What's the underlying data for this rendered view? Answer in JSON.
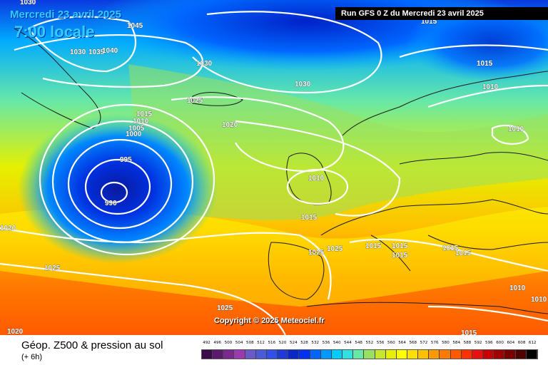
{
  "header": {
    "date": "Mercredi 23 avril 2025",
    "time": "7:00 locale",
    "run": "Run GFS 0 Z du Mercredi 23 avril 2025"
  },
  "copyright": "Copyright © 2025 Meteociel.fr",
  "footer": {
    "title": "Géop. Z500 & pression au sol",
    "subtitle": "(+ 6h)"
  },
  "legend": {
    "values": [
      "492",
      "496",
      "500",
      "504",
      "508",
      "512",
      "516",
      "520",
      "524",
      "528",
      "532",
      "536",
      "540",
      "544",
      "548",
      "552",
      "556",
      "560",
      "564",
      "568",
      "572",
      "576",
      "580",
      "584",
      "588",
      "592",
      "596",
      "600",
      "604",
      "608",
      "612"
    ],
    "colors": [
      "#3a0a4a",
      "#5a1a6e",
      "#7a2a8e",
      "#9a3aae",
      "#6a5ac8",
      "#4a5ad8",
      "#3050e8",
      "#1e3ad8",
      "#0a28c8",
      "#0030f0",
      "#0066ff",
      "#0099ff",
      "#00ccff",
      "#33e0e0",
      "#66e8a8",
      "#99e060",
      "#c8e630",
      "#e6f000",
      "#ffff00",
      "#ffe000",
      "#ffc000",
      "#ff9900",
      "#ff7a00",
      "#ff5a00",
      "#ff3000",
      "#e81010",
      "#c80000",
      "#a00000",
      "#780000",
      "#500000",
      "#000000"
    ]
  },
  "isobars": [
    "1030",
    "1045",
    "1030",
    "1035",
    "1040",
    "1030",
    "1025",
    "1030",
    "1020",
    "1015",
    "1010",
    "1005",
    "1000",
    "995",
    "990",
    "1015",
    "1010",
    "1010",
    "1015",
    "1020",
    "1025",
    "1025",
    "1025",
    "1015",
    "1015",
    "1015",
    "1015",
    "1015",
    "1010",
    "1010",
    "1025",
    "1020",
    "1015",
    "1015",
    "1010"
  ]
}
